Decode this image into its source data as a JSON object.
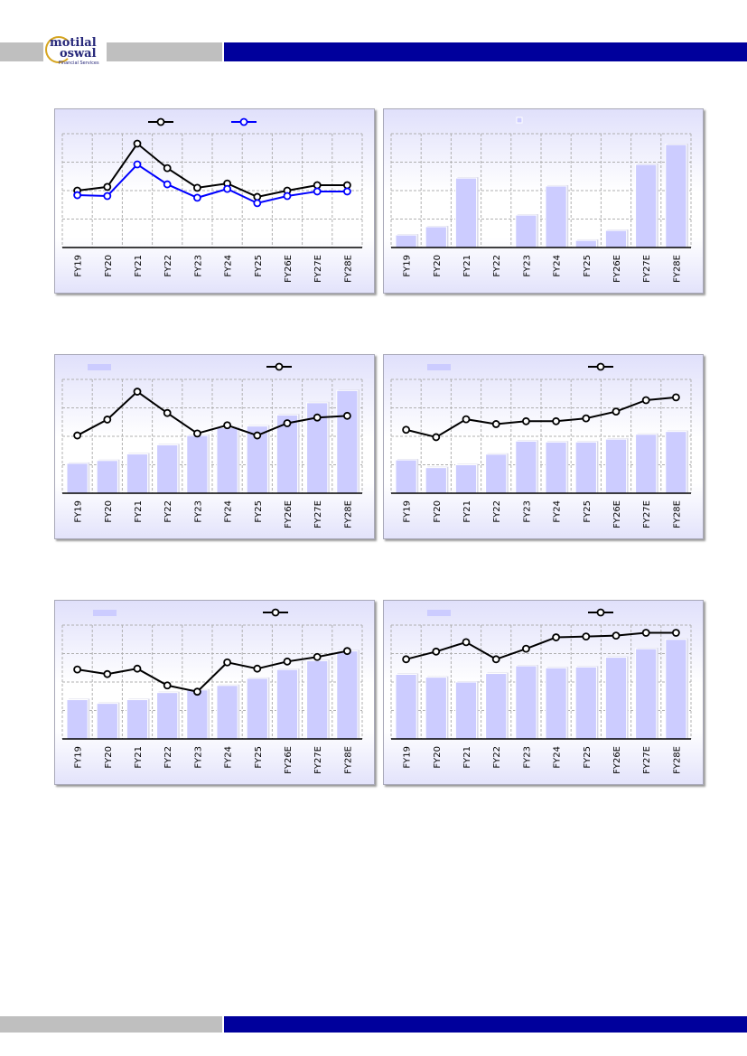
{
  "header": {
    "logo_text": "motilal oswal",
    "logo_sub": "Financial Services"
  },
  "colors": {
    "brand_blue": "#00009c",
    "bar_fill": "#ccccff",
    "line_black": "#000000",
    "line_blue": "#0000ff"
  },
  "chart_data": [
    {
      "type": "line",
      "categories": [
        "FY19",
        "FY20",
        "FY21",
        "FY22",
        "FY23",
        "FY24",
        "FY25",
        "FY26E",
        "FY27E",
        "FY28E"
      ],
      "ylim": [
        0,
        4
      ],
      "grid": true,
      "legend": "top-center",
      "series": [
        {
          "name": "",
          "kind": "line",
          "color": "#000000",
          "values": [
            2.0,
            2.13,
            3.65,
            2.79,
            2.1,
            2.25,
            1.78,
            2.0,
            2.19,
            2.19
          ]
        },
        {
          "name": "",
          "kind": "line",
          "color": "#0000ff",
          "values": [
            1.84,
            1.81,
            2.92,
            2.22,
            1.75,
            2.06,
            1.56,
            1.81,
            1.97,
            1.97
          ]
        }
      ]
    },
    {
      "type": "bar",
      "categories": [
        "FY19",
        "FY20",
        "FY21",
        "FY22",
        "FY23",
        "FY24",
        "FY25",
        "FY26E",
        "FY27E",
        "FY28E"
      ],
      "ylim": [
        0,
        4
      ],
      "grid": true,
      "legend": "top-center",
      "series": [
        {
          "name": "",
          "kind": "bar",
          "values": [
            0.44,
            0.73,
            2.44,
            0,
            1.14,
            2.16,
            0.25,
            0.6,
            2.92,
            3.62
          ]
        }
      ]
    },
    {
      "type": "bar",
      "categories": [
        "FY19",
        "FY20",
        "FY21",
        "FY22",
        "FY23",
        "FY24",
        "FY25",
        "FY26E",
        "FY27E",
        "FY28E"
      ],
      "ylim": [
        0,
        4
      ],
      "grid": true,
      "legend": "top",
      "series": [
        {
          "name": "",
          "kind": "bar",
          "values": [
            1.05,
            1.15,
            1.38,
            1.7,
            2.03,
            2.3,
            2.36,
            2.75,
            3.18,
            3.61
          ]
        },
        {
          "name": "",
          "kind": "line",
          "color": "#000000",
          "values": [
            2.03,
            2.59,
            3.57,
            2.82,
            2.1,
            2.39,
            2.03,
            2.46,
            2.66,
            2.72
          ]
        }
      ]
    },
    {
      "type": "bar",
      "categories": [
        "FY19",
        "FY20",
        "FY21",
        "FY22",
        "FY23",
        "FY24",
        "FY25",
        "FY26E",
        "FY27E",
        "FY28E"
      ],
      "ylim": [
        0,
        4
      ],
      "grid": true,
      "legend": "top",
      "series": [
        {
          "name": "",
          "kind": "bar",
          "values": [
            1.17,
            0.9,
            1.0,
            1.37,
            1.83,
            1.8,
            1.8,
            1.9,
            2.07,
            2.17
          ]
        },
        {
          "name": "",
          "kind": "line",
          "color": "#000000",
          "values": [
            2.23,
            1.97,
            2.6,
            2.43,
            2.53,
            2.53,
            2.63,
            2.87,
            3.27,
            3.37
          ]
        }
      ]
    },
    {
      "type": "bar",
      "categories": [
        "FY19",
        "FY20",
        "FY21",
        "FY22",
        "FY23",
        "FY24",
        "FY25",
        "FY26E",
        "FY27E",
        "FY28E"
      ],
      "ylim": [
        0,
        4
      ],
      "grid": true,
      "legend": "top",
      "series": [
        {
          "name": "",
          "kind": "bar",
          "values": [
            1.38,
            1.25,
            1.38,
            1.63,
            1.72,
            1.88,
            2.13,
            2.44,
            2.75,
            3.09
          ]
        },
        {
          "name": "",
          "kind": "line",
          "color": "#000000",
          "values": [
            2.44,
            2.28,
            2.47,
            1.88,
            1.66,
            2.69,
            2.47,
            2.72,
            2.88,
            3.09
          ]
        }
      ]
    },
    {
      "type": "bar",
      "categories": [
        "FY19",
        "FY20",
        "FY21",
        "FY22",
        "FY23",
        "FY24",
        "FY25",
        "FY26E",
        "FY27E",
        "FY28E"
      ],
      "ylim": [
        0,
        4
      ],
      "grid": true,
      "legend": "top",
      "series": [
        {
          "name": "",
          "kind": "bar",
          "values": [
            2.27,
            2.17,
            2.0,
            2.3,
            2.57,
            2.5,
            2.53,
            2.87,
            3.17,
            3.5
          ]
        },
        {
          "name": "",
          "kind": "line",
          "color": "#000000",
          "values": [
            2.8,
            3.07,
            3.4,
            2.8,
            3.17,
            3.57,
            3.6,
            3.63,
            3.73,
            3.73
          ]
        }
      ]
    }
  ]
}
